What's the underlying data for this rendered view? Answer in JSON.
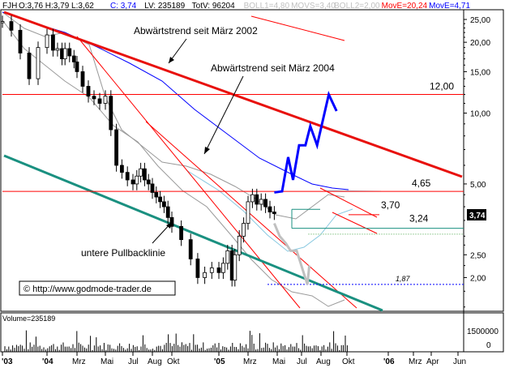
{
  "header": {
    "symbol": "FJH",
    "items": [
      {
        "text": "O:3,76 H:3,79 L:3,62",
        "color": "#000000"
      },
      {
        "text": "C: 3,74",
        "color": "#0000ff"
      },
      {
        "text": "LV: 235189",
        "color": "#000000"
      },
      {
        "text": "TotV: 96204",
        "color": "#000000"
      },
      {
        "text": "BOLL1=4,80",
        "color": "#c0c0c0"
      },
      {
        "text": "MOVS=3,40",
        "color": "#c0c0c0"
      },
      {
        "text": "BOLL2=2,00",
        "color": "#c0c0c0"
      },
      {
        "text": "MovE=20,24",
        "color": "#ff0000"
      },
      {
        "text": "MovE=4,71",
        "color": "#0000ff"
      }
    ]
  },
  "copyright": "© http://www.godmode-trader.de",
  "volume_label": "Volume=235189",
  "last_price_badge": "3,74",
  "colors": {
    "red_line": "#ff0000",
    "strong_red": "#e8100c",
    "blue": "#0000ff",
    "teal": "#1a9080",
    "grey": "#aaaaaa",
    "bollinger": "#9a9a9a",
    "ma_short": "#88c8e0"
  },
  "chart_data": {
    "type": "line",
    "yscale": "log",
    "ylim": [
      1.45,
      27.5
    ],
    "y_ticks": [
      {
        "value": 25,
        "label": "25,00"
      },
      {
        "value": 20,
        "label": "20,00"
      },
      {
        "value": 15,
        "label": "15,00"
      },
      {
        "value": 10,
        "label": "10,00"
      },
      {
        "value": 5,
        "label": "5,00"
      },
      {
        "value": 2.5,
        "label": "2,50"
      },
      {
        "value": 2,
        "label": "2,00"
      }
    ],
    "x_ticks": [
      "'03",
      "'04",
      "Mrz",
      "Mai",
      "Jul",
      "Aug",
      "Okt",
      "'05",
      "Mrz",
      "Mai",
      "Jul",
      "Aug",
      "Okt",
      "'06",
      "Mrz",
      "Apr",
      "Jun"
    ],
    "levels": [
      {
        "value": 12.0,
        "label": "12,00"
      },
      {
        "value": 4.65,
        "label": "4,65"
      },
      {
        "value": 3.7,
        "label": "3,70"
      },
      {
        "value": 3.24,
        "label": "3,24"
      },
      {
        "value": 1.87,
        "label": "1,87"
      }
    ],
    "annotations": [
      "Abwärtstrend seit März 2002",
      "Abwärtstrend seit März 2004",
      "untere Pullbacklinie"
    ],
    "volume_axis": {
      "max_label": "1500000",
      "min_label": "0"
    },
    "price_series": [
      {
        "t": 0.0,
        "c": 24.5
      },
      {
        "t": 0.2,
        "c": 22.5
      },
      {
        "t": 0.4,
        "c": 18.0
      },
      {
        "t": 0.6,
        "c": 14.0
      },
      {
        "t": 0.8,
        "c": 19.0
      },
      {
        "t": 1.0,
        "c": 21.5
      },
      {
        "t": 1.2,
        "c": 18.5
      },
      {
        "t": 1.35,
        "c": 18.8
      },
      {
        "t": 1.5,
        "c": 17.0
      },
      {
        "t": 1.6,
        "c": 18.8
      },
      {
        "t": 1.75,
        "c": 17.5
      },
      {
        "t": 1.9,
        "c": 16.5
      },
      {
        "t": 2.0,
        "c": 15.0
      },
      {
        "t": 2.2,
        "c": 13.0
      },
      {
        "t": 2.4,
        "c": 11.8
      },
      {
        "t": 2.6,
        "c": 11.5
      },
      {
        "t": 2.8,
        "c": 11.0
      },
      {
        "t": 3.0,
        "c": 11.8
      },
      {
        "t": 3.2,
        "c": 8.5
      },
      {
        "t": 3.4,
        "c": 6.0
      },
      {
        "t": 3.6,
        "c": 5.6
      },
      {
        "t": 3.8,
        "c": 5.2
      },
      {
        "t": 4.0,
        "c": 5.0
      },
      {
        "t": 4.2,
        "c": 5.4
      },
      {
        "t": 4.4,
        "c": 5.8
      },
      {
        "t": 4.6,
        "c": 5.2
      },
      {
        "t": 4.8,
        "c": 5.0
      },
      {
        "t": 5.0,
        "c": 4.6
      },
      {
        "t": 5.2,
        "c": 4.4
      },
      {
        "t": 5.4,
        "c": 4.2
      },
      {
        "t": 5.6,
        "c": 4.0
      },
      {
        "t": 5.8,
        "c": 3.6
      },
      {
        "t": 6.0,
        "c": 3.3
      },
      {
        "t": 6.2,
        "c": 2.9
      },
      {
        "t": 6.4,
        "c": 2.4
      },
      {
        "t": 6.55,
        "c": 2.0
      },
      {
        "t": 6.7,
        "c": 2.1
      },
      {
        "t": 6.85,
        "c": 2.2
      },
      {
        "t": 7.0,
        "c": 2.1
      },
      {
        "t": 7.15,
        "c": 2.3
      },
      {
        "t": 7.3,
        "c": 2.6
      },
      {
        "t": 7.45,
        "c": 1.95
      },
      {
        "t": 7.55,
        "c": 2.5
      },
      {
        "t": 7.7,
        "c": 3.0
      },
      {
        "t": 7.85,
        "c": 3.4
      },
      {
        "t": 8.0,
        "c": 4.2
      },
      {
        "t": 8.15,
        "c": 4.5
      },
      {
        "t": 8.3,
        "c": 4.1
      },
      {
        "t": 8.45,
        "c": 4.3
      },
      {
        "t": 8.6,
        "c": 4.0
      },
      {
        "t": 8.75,
        "c": 3.8
      },
      {
        "t": 8.9,
        "c": 3.74
      }
    ],
    "scenario_up": [
      {
        "t": 8.9,
        "c": 4.6
      },
      {
        "t": 9.2,
        "c": 4.65
      },
      {
        "t": 9.45,
        "c": 6.5
      },
      {
        "t": 9.65,
        "c": 5.2
      },
      {
        "t": 9.9,
        "c": 7.3
      },
      {
        "t": 10.2,
        "c": 7.3
      },
      {
        "t": 10.45,
        "c": 8.8
      },
      {
        "t": 10.8,
        "c": 7.3
      },
      {
        "t": 11.3,
        "c": 12.0
      },
      {
        "t": 11.6,
        "c": 10.2
      }
    ],
    "scenario_down": [
      {
        "t": 8.9,
        "c": 3.4
      },
      {
        "t": 9.1,
        "c": 3.0
      },
      {
        "t": 9.35,
        "c": 2.8
      },
      {
        "t": 9.55,
        "c": 2.6
      },
      {
        "t": 9.8,
        "c": 2.6
      },
      {
        "t": 10.3,
        "c": 1.87
      },
      {
        "t": 10.4,
        "c": 2.25
      }
    ]
  }
}
